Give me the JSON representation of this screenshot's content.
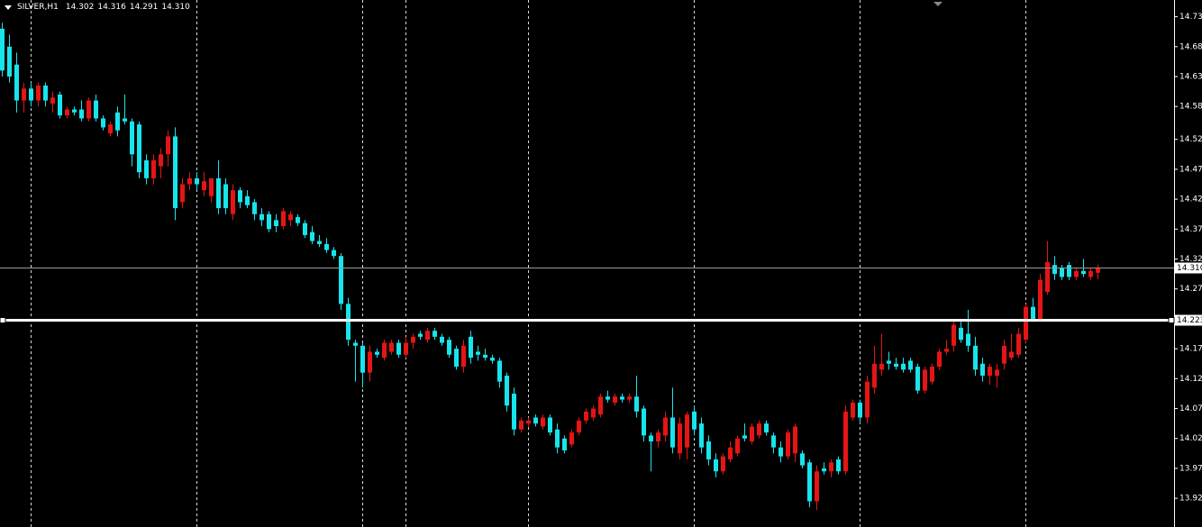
{
  "header": [
    "SILVER,H1",
    "14.302",
    "14.316",
    "14.291",
    "14.310"
  ],
  "chart_data": {
    "type": "candlestick",
    "open": [
      14.71,
      14.68,
      14.65,
      14.59,
      14.61,
      14.59,
      14.615,
      14.585,
      14.6,
      14.565,
      14.575,
      14.575,
      14.56,
      14.59,
      14.56,
      14.535,
      14.57,
      14.56,
      14.555,
      14.55,
      14.49,
      14.46,
      14.48,
      14.5,
      14.53,
      14.42,
      14.45,
      14.46,
      14.44,
      14.43,
      14.46,
      14.45,
      14.4,
      14.44,
      14.43,
      14.42,
      14.4,
      14.4,
      14.39,
      14.38,
      14.39,
      14.395,
      14.385,
      14.37,
      14.355,
      14.35,
      14.34,
      14.33,
      14.25,
      14.185,
      14.18,
      14.135,
      14.17,
      14.16,
      14.17,
      14.185,
      14.165,
      14.185,
      14.2,
      14.19,
      14.205,
      14.195,
      14.19,
      14.175,
      14.145,
      14.195,
      14.17,
      14.165,
      14.16,
      14.155,
      14.13,
      14.1,
      14.04,
      14.05,
      14.06,
      14.045,
      14.06,
      14.04,
      14.025,
      14.015,
      14.035,
      14.055,
      14.06,
      14.065,
      14.095,
      14.085,
      14.095,
      14.09,
      14.095,
      14.075,
      14.03,
      14.02,
      14.03,
      14.06,
      14.0,
      14.01,
      14.07,
      14.05,
      14.02,
      13.99,
      13.97,
      13.99,
      14.0,
      14.03,
      14.02,
      14.03,
      14.05,
      14.03,
      14.01,
      13.995,
      14.0,
      14.0,
      13.985,
      13.92,
      13.975,
      13.97,
      13.99,
      13.97,
      14.06,
      14.085,
      14.06,
      14.11,
      14.14,
      14.155,
      14.15,
      14.15,
      14.155,
      14.145,
      14.105,
      14.12,
      14.145,
      14.17,
      14.18,
      14.21,
      14.2,
      14.18,
      14.15,
      14.13,
      14.13,
      14.15,
      14.16,
      14.165,
      14.19,
      14.245,
      14.225,
      14.27,
      14.315,
      14.31,
      14.315,
      14.295,
      14.305,
      14.295,
      14.302
    ],
    "high": [
      14.72,
      14.7,
      14.67,
      14.62,
      14.62,
      14.62,
      14.62,
      14.605,
      14.605,
      14.58,
      14.58,
      14.59,
      14.595,
      14.6,
      14.565,
      14.555,
      14.58,
      14.6,
      14.56,
      14.555,
      14.5,
      14.5,
      14.51,
      14.54,
      14.545,
      14.46,
      14.47,
      14.47,
      14.47,
      14.46,
      14.49,
      14.46,
      14.45,
      14.445,
      14.44,
      14.425,
      14.41,
      14.405,
      14.4,
      14.41,
      14.405,
      14.4,
      14.39,
      14.38,
      14.365,
      14.36,
      14.345,
      14.335,
      14.26,
      14.19,
      14.185,
      14.18,
      14.175,
      14.19,
      14.19,
      14.19,
      14.195,
      14.2,
      14.205,
      14.21,
      14.21,
      14.2,
      14.195,
      14.18,
      14.19,
      14.205,
      14.18,
      14.175,
      14.165,
      14.16,
      14.135,
      14.11,
      14.06,
      14.06,
      14.065,
      14.065,
      14.065,
      14.05,
      14.03,
      14.04,
      14.06,
      14.075,
      14.08,
      14.1,
      14.105,
      14.1,
      14.1,
      14.1,
      14.13,
      14.08,
      14.035,
      14.04,
      14.07,
      14.11,
      14.06,
      14.07,
      14.08,
      14.06,
      14.03,
      14.0,
      14.0,
      14.02,
      14.03,
      14.05,
      14.05,
      14.055,
      14.055,
      14.035,
      14.02,
      14.04,
      14.05,
      14.005,
      13.99,
      13.98,
      13.985,
      13.99,
      13.995,
      14.08,
      14.09,
      14.09,
      14.13,
      14.18,
      14.2,
      14.17,
      14.16,
      14.16,
      14.16,
      14.15,
      14.145,
      14.15,
      14.175,
      14.19,
      14.22,
      14.22,
      14.24,
      14.195,
      14.16,
      14.15,
      14.15,
      14.19,
      14.2,
      14.21,
      14.25,
      14.26,
      14.3,
      14.355,
      14.33,
      14.315,
      14.32,
      14.31,
      14.325,
      14.31,
      14.316
    ],
    "low": [
      14.63,
      14.62,
      14.57,
      14.57,
      14.58,
      14.58,
      14.58,
      14.57,
      14.56,
      14.56,
      14.565,
      14.555,
      14.555,
      14.555,
      14.54,
      14.53,
      14.53,
      14.55,
      14.48,
      14.46,
      14.45,
      14.45,
      14.46,
      14.48,
      14.39,
      14.41,
      14.44,
      14.44,
      14.43,
      14.42,
      14.4,
      14.4,
      14.39,
      14.41,
      14.41,
      14.39,
      14.38,
      14.37,
      14.37,
      14.375,
      14.38,
      14.38,
      14.36,
      14.35,
      14.345,
      14.335,
      14.325,
      14.24,
      14.18,
      14.12,
      14.11,
      14.12,
      14.16,
      14.155,
      14.165,
      14.16,
      14.16,
      14.175,
      14.19,
      14.185,
      14.19,
      14.18,
      14.16,
      14.14,
      14.135,
      14.15,
      14.155,
      14.155,
      14.15,
      14.11,
      14.07,
      14.03,
      14.035,
      14.045,
      14.045,
      14.04,
      14.03,
      14.0,
      14.0,
      14.01,
      14.03,
      14.05,
      14.055,
      14.06,
      14.085,
      14.08,
      14.085,
      14.085,
      14.06,
      14.02,
      13.97,
      14.01,
      14.02,
      14.0,
      13.99,
      13.99,
      14.03,
      14.0,
      13.98,
      13.96,
      13.965,
      13.985,
      13.995,
      14.02,
      14.015,
      14.025,
      14.03,
      14.0,
      13.985,
      13.99,
      13.985,
      13.975,
      13.91,
      13.905,
      13.965,
      13.96,
      13.965,
      13.965,
      14.055,
      14.05,
      14.05,
      14.1,
      14.13,
      14.14,
      14.14,
      14.135,
      14.135,
      14.1,
      14.1,
      14.115,
      14.14,
      14.165,
      14.17,
      14.185,
      14.17,
      14.13,
      14.12,
      14.115,
      14.11,
      14.14,
      14.155,
      14.16,
      14.185,
      14.22,
      14.22,
      14.265,
      14.29,
      14.29,
      14.29,
      14.29,
      14.295,
      14.29,
      14.291
    ],
    "close": [
      14.64,
      14.63,
      14.59,
      14.61,
      14.59,
      14.615,
      14.59,
      14.595,
      14.565,
      14.575,
      14.57,
      14.56,
      14.59,
      14.56,
      14.545,
      14.55,
      14.54,
      14.555,
      14.5,
      14.47,
      14.46,
      14.49,
      14.5,
      14.53,
      14.41,
      14.45,
      14.46,
      14.45,
      14.455,
      14.46,
      14.41,
      14.41,
      14.44,
      14.42,
      14.415,
      14.4,
      14.39,
      14.375,
      14.38,
      14.405,
      14.4,
      14.385,
      14.365,
      14.355,
      14.35,
      14.34,
      14.33,
      14.25,
      14.19,
      14.18,
      14.135,
      14.17,
      14.165,
      14.185,
      14.185,
      14.165,
      14.185,
      14.195,
      14.195,
      14.205,
      14.195,
      14.185,
      14.165,
      14.145,
      14.18,
      14.16,
      14.165,
      14.16,
      14.155,
      14.12,
      14.08,
      14.04,
      14.055,
      14.055,
      14.05,
      14.06,
      14.035,
      14.01,
      14.005,
      14.035,
      14.055,
      14.07,
      14.075,
      14.095,
      14.09,
      14.095,
      14.09,
      14.095,
      14.07,
      14.03,
      14.02,
      14.035,
      14.06,
      14.01,
      14.05,
      14.065,
      14.04,
      14.01,
      13.99,
      13.97,
      13.995,
      14.01,
      14.025,
      14.025,
      14.045,
      14.05,
      14.035,
      14.01,
      13.995,
      14.035,
      14.045,
      13.98,
      13.92,
      13.97,
      13.97,
      13.985,
      13.97,
      14.07,
      14.085,
      14.06,
      14.12,
      14.15,
      14.15,
      14.15,
      14.145,
      14.14,
      14.14,
      14.105,
      14.14,
      14.145,
      14.17,
      14.175,
      14.215,
      14.19,
      14.18,
      14.14,
      14.13,
      14.145,
      14.14,
      14.18,
      14.17,
      14.2,
      14.245,
      14.225,
      14.29,
      14.32,
      14.3,
      14.295,
      14.295,
      14.305,
      14.3,
      14.305,
      14.31
    ],
    "up_color": "#e51515",
    "down_color": "#18e4ec",
    "ylim": [
      13.877,
      14.758
    ],
    "yticks": [
      {
        "value": 14.73,
        "label": "14.730"
      },
      {
        "value": 14.68,
        "label": "14.680"
      },
      {
        "value": 14.63,
        "label": "14.630"
      },
      {
        "value": 14.58,
        "label": "14.580"
      },
      14.525,
      14.475,
      14.425,
      14.375,
      14.325,
      14.275,
      14.175,
      14.125,
      14.075,
      14.025,
      13.975,
      13.925
    ],
    "price_lines": [
      {
        "value": 14.31,
        "label": "14.310",
        "color": "#9a9a9a"
      },
      {
        "value": 14.223,
        "label": "14.223",
        "color": "#ffffff"
      }
    ]
  }
}
